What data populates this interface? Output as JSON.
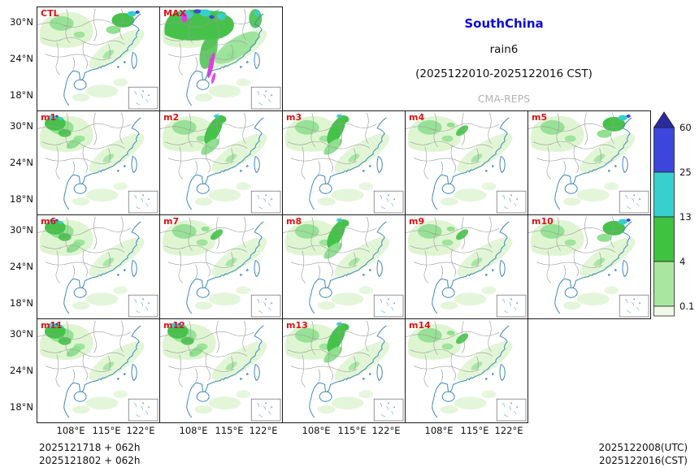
{
  "header": {
    "region": "SouthChina",
    "variable": "rain6",
    "period": "(2025122010-2025122016 CST)",
    "model": "CMA-REPS",
    "region_color": "#0b0bdc",
    "model_color": "#b2b2b2",
    "panel_label_color": "#e01212"
  },
  "panels": [
    {
      "label": "CTL",
      "variant": 2,
      "max": false
    },
    {
      "label": "MAX",
      "variant": 1,
      "max": true
    },
    {
      "label": "m1",
      "variant": 0,
      "max": false
    },
    {
      "label": "m2",
      "variant": 1,
      "max": false
    },
    {
      "label": "m3",
      "variant": 1,
      "max": false
    },
    {
      "label": "m4",
      "variant": 3,
      "max": false
    },
    {
      "label": "m5",
      "variant": 2,
      "max": false
    },
    {
      "label": "m6",
      "variant": 0,
      "max": false
    },
    {
      "label": "m7",
      "variant": 3,
      "max": false
    },
    {
      "label": "m8",
      "variant": 1,
      "max": false
    },
    {
      "label": "m9",
      "variant": 3,
      "max": false
    },
    {
      "label": "m10",
      "variant": 2,
      "max": false
    },
    {
      "label": "m11",
      "variant": 0,
      "max": false
    },
    {
      "label": "m12",
      "variant": 0,
      "max": false
    },
    {
      "label": "m13",
      "variant": 1,
      "max": false
    },
    {
      "label": "m14",
      "variant": 3,
      "max": false
    }
  ],
  "axes": {
    "lat_ticks": [
      "30°N",
      "24°N",
      "18°N"
    ],
    "lon_ticks": [
      "108°E",
      "115°E",
      "122°E"
    ]
  },
  "colorbar": {
    "levels": [
      "60",
      "25",
      "13",
      "4",
      "0.1"
    ],
    "segment_colors": [
      "#2b2ba0",
      "#3c46dc",
      "#38cfcf",
      "#3fc23f",
      "#a9e7a0",
      "#eef9e8"
    ]
  },
  "footer": {
    "left_line1": "2025121718 + 062h",
    "left_line2": "2025121802 + 062h",
    "right_line1": "2025122008(UTC)",
    "right_line2": "2025122016(CST)"
  },
  "chart_data": {
    "type": "heatmap",
    "subtype": "precipitation-ensemble-maps",
    "title": "SouthChina rain6 (2025122010-2025122016 CST)",
    "model": "CMA-REPS",
    "panel_labels": [
      "CTL",
      "MAX",
      "m1",
      "m2",
      "m3",
      "m4",
      "m5",
      "m6",
      "m7",
      "m8",
      "m9",
      "m10",
      "m11",
      "m12",
      "m13",
      "m14"
    ],
    "grid_rows": [
      [
        "CTL",
        "MAX"
      ],
      [
        "m1",
        "m2",
        "m3",
        "m4",
        "m5"
      ],
      [
        "m6",
        "m7",
        "m8",
        "m9",
        "m10"
      ],
      [
        "m11",
        "m12",
        "m13",
        "m14"
      ]
    ],
    "lat_ticks_deg_n": [
      30,
      24,
      18
    ],
    "lon_ticks_deg_e": [
      108,
      115,
      122
    ],
    "colorbar_levels": [
      0.1,
      4,
      13,
      25,
      60
    ],
    "colorbar_colors_low_to_high": [
      "#eef9e8",
      "#a9e7a0",
      "#3fc23f",
      "#38cfcf",
      "#3c46dc"
    ],
    "legend_position": "right",
    "init_times": [
      "2025121718 + 062h",
      "2025121802 + 062h"
    ],
    "valid_times": [
      "2025122008(UTC)",
      "2025122016(CST)"
    ]
  }
}
